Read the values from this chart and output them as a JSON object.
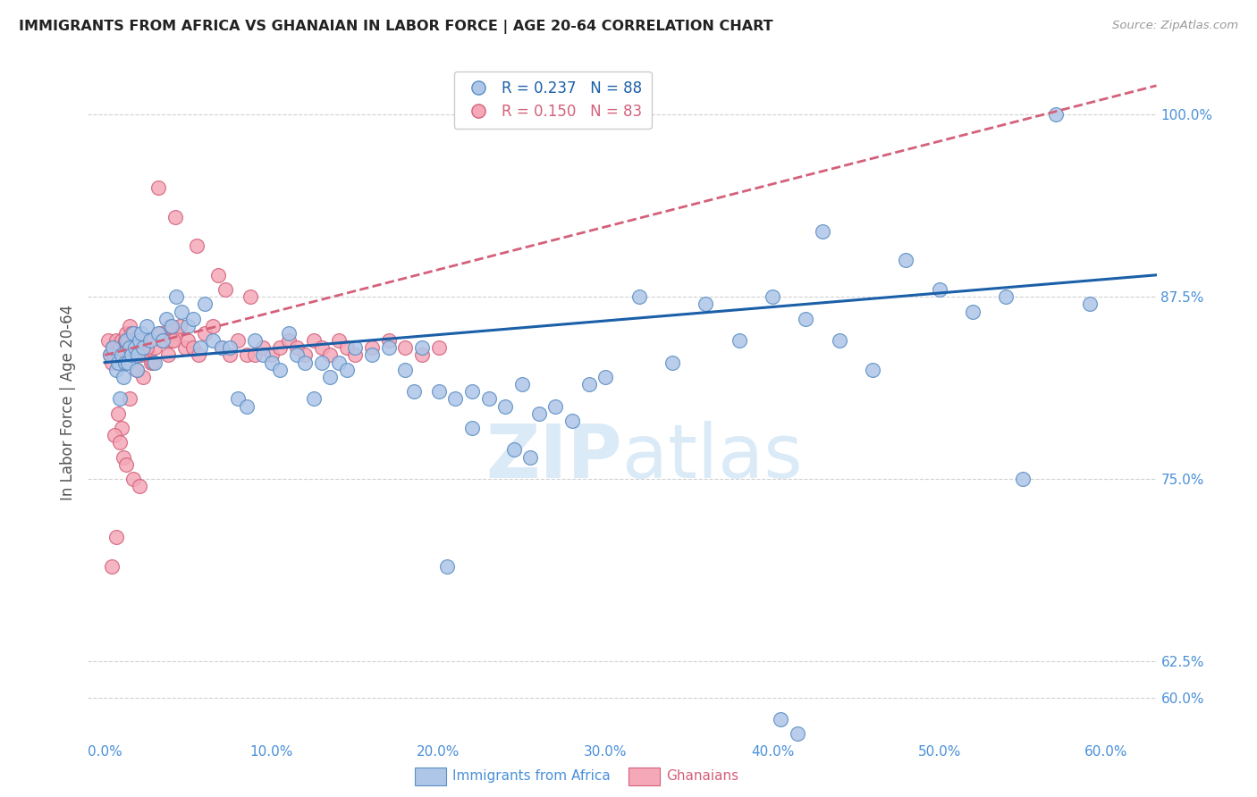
{
  "title": "IMMIGRANTS FROM AFRICA VS GHANAIAN IN LABOR FORCE | AGE 20-64 CORRELATION CHART",
  "source": "Source: ZipAtlas.com",
  "ylabel": "In Labor Force | Age 20-64",
  "x_tick_labels": [
    "0.0%",
    "10.0%",
    "20.0%",
    "30.0%",
    "40.0%",
    "50.0%",
    "60.0%"
  ],
  "x_tick_values": [
    0.0,
    10.0,
    20.0,
    30.0,
    40.0,
    50.0,
    60.0
  ],
  "y_tick_labels": [
    "60.0%",
    "62.5%",
    "75.0%",
    "87.5%",
    "100.0%"
  ],
  "y_tick_values": [
    60.0,
    62.5,
    75.0,
    87.5,
    100.0
  ],
  "xlim": [
    -1.0,
    63.0
  ],
  "ylim": [
    57.0,
    103.5
  ],
  "legend_africa_label": "Immigrants from Africa",
  "legend_ghana_label": "Ghanaians",
  "legend_africa_r": "R = 0.237",
  "legend_africa_n": "N = 88",
  "legend_ghana_r": "R = 0.150",
  "legend_ghana_n": "N = 83",
  "africa_color": "#aec6e8",
  "ghana_color": "#f4a8b8",
  "africa_edge_color": "#5b8ec4",
  "ghana_edge_color": "#d4607a",
  "trend_africa_color": "#1a5fa8",
  "trend_ghana_color": "#d4607a",
  "background_color": "#ffffff",
  "grid_color": "#cccccc",
  "title_color": "#222222",
  "axis_label_color": "#4a90d9",
  "tick_label_color": "#4a90d9",
  "watermark_color": "#daeaf7",
  "africa_x": [
    0.3,
    0.5,
    0.7,
    0.8,
    0.9,
    1.0,
    1.1,
    1.2,
    1.3,
    1.4,
    1.5,
    1.6,
    1.7,
    1.8,
    1.9,
    2.0,
    2.1,
    2.2,
    2.3,
    2.5,
    2.7,
    3.0,
    3.2,
    3.5,
    3.7,
    4.0,
    4.3,
    4.6,
    5.0,
    5.3,
    5.7,
    6.0,
    6.5,
    7.0,
    7.5,
    8.0,
    8.5,
    9.0,
    9.5,
    10.0,
    10.5,
    11.0,
    11.5,
    12.0,
    12.5,
    13.0,
    13.5,
    14.0,
    14.5,
    15.0,
    16.0,
    17.0,
    18.0,
    19.0,
    20.0,
    21.0,
    22.0,
    23.0,
    24.0,
    25.0,
    26.0,
    27.0,
    28.0,
    29.0,
    30.0,
    32.0,
    34.0,
    36.0,
    38.0,
    40.0,
    42.0,
    44.0,
    46.0,
    48.0,
    50.0,
    52.0,
    54.0,
    57.0,
    59.0,
    22.0,
    24.5,
    25.5,
    40.5,
    41.5,
    43.0,
    18.5,
    20.5,
    55.0
  ],
  "africa_y": [
    83.5,
    84.0,
    82.5,
    83.0,
    80.5,
    83.5,
    82.0,
    83.0,
    84.5,
    83.0,
    84.0,
    83.5,
    85.0,
    84.0,
    82.5,
    83.5,
    84.5,
    85.0,
    84.0,
    85.5,
    84.5,
    83.0,
    85.0,
    84.5,
    86.0,
    85.5,
    87.5,
    86.5,
    85.5,
    86.0,
    84.0,
    87.0,
    84.5,
    84.0,
    84.0,
    80.5,
    80.0,
    84.5,
    83.5,
    83.0,
    82.5,
    85.0,
    83.5,
    83.0,
    80.5,
    83.0,
    82.0,
    83.0,
    82.5,
    84.0,
    83.5,
    84.0,
    82.5,
    84.0,
    81.0,
    80.5,
    81.0,
    80.5,
    80.0,
    81.5,
    79.5,
    80.0,
    79.0,
    81.5,
    82.0,
    87.5,
    83.0,
    87.0,
    84.5,
    87.5,
    86.0,
    84.5,
    82.5,
    90.0,
    88.0,
    86.5,
    87.5,
    100.0,
    87.0,
    78.5,
    77.0,
    76.5,
    58.5,
    57.5,
    92.0,
    81.0,
    69.0,
    75.0
  ],
  "ghana_x": [
    0.2,
    0.3,
    0.4,
    0.5,
    0.6,
    0.7,
    0.8,
    0.9,
    1.0,
    1.1,
    1.2,
    1.3,
    1.4,
    1.5,
    1.6,
    1.7,
    1.8,
    1.9,
    2.0,
    2.1,
    2.2,
    2.4,
    2.6,
    2.8,
    3.0,
    3.3,
    3.5,
    3.8,
    4.0,
    4.3,
    4.5,
    4.8,
    5.0,
    5.3,
    5.6,
    6.0,
    6.5,
    7.0,
    7.5,
    8.0,
    8.5,
    9.0,
    9.5,
    10.0,
    10.5,
    11.0,
    11.5,
    12.0,
    12.5,
    13.0,
    13.5,
    14.0,
    14.5,
    15.0,
    16.0,
    17.0,
    18.0,
    19.0,
    20.0,
    2.3,
    1.5,
    0.8,
    1.0,
    0.6,
    0.9,
    1.1,
    1.3,
    1.7,
    2.1,
    2.5,
    3.2,
    4.2,
    5.5,
    6.8,
    7.2,
    8.7,
    4.1,
    3.9,
    2.9,
    0.4,
    0.7,
    1.4,
    1.9
  ],
  "ghana_y": [
    84.5,
    83.5,
    83.0,
    84.0,
    83.5,
    84.5,
    83.5,
    84.0,
    84.5,
    83.0,
    84.5,
    85.0,
    84.5,
    85.5,
    85.0,
    84.0,
    84.5,
    84.0,
    84.0,
    83.5,
    83.5,
    84.5,
    83.5,
    83.0,
    84.0,
    85.0,
    84.5,
    83.5,
    84.5,
    85.0,
    85.5,
    84.0,
    84.5,
    84.0,
    83.5,
    85.0,
    85.5,
    84.0,
    83.5,
    84.5,
    83.5,
    83.5,
    84.0,
    83.5,
    84.0,
    84.5,
    84.0,
    83.5,
    84.5,
    84.0,
    83.5,
    84.5,
    84.0,
    83.5,
    84.0,
    84.5,
    84.0,
    83.5,
    84.0,
    82.0,
    80.5,
    79.5,
    78.5,
    78.0,
    77.5,
    76.5,
    76.0,
    75.0,
    74.5,
    84.0,
    95.0,
    93.0,
    91.0,
    89.0,
    88.0,
    87.5,
    84.5,
    85.5,
    83.0,
    69.0,
    71.0,
    84.0,
    82.5
  ]
}
